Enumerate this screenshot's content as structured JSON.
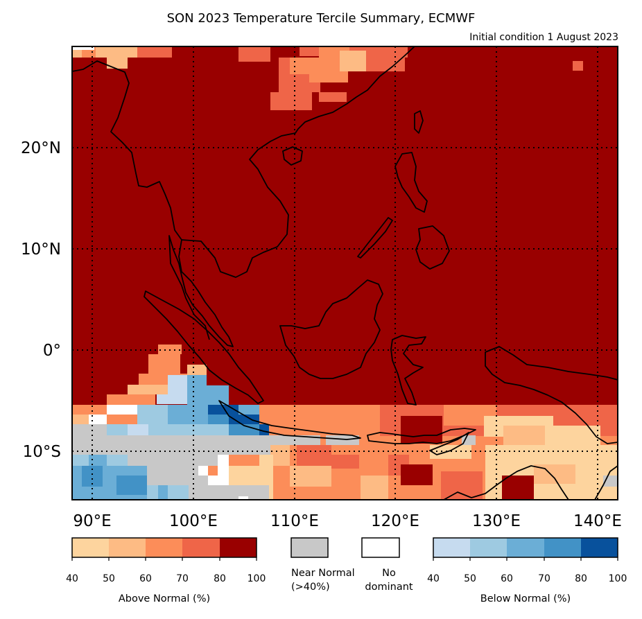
{
  "title": "SON 2023 Temperature Tercile Summary, ECMWF",
  "subtitle": "Initial condition 1 August 2023",
  "map": {
    "lon_range": [
      88,
      142
    ],
    "lat_range": [
      -15,
      30
    ],
    "lon_ticks": [
      {
        "value": 90,
        "label": "90°E"
      },
      {
        "value": 100,
        "label": "100°E"
      },
      {
        "value": 110,
        "label": "110°E"
      },
      {
        "value": 120,
        "label": "120°E"
      },
      {
        "value": 130,
        "label": "130°E"
      },
      {
        "value": 140,
        "label": "140°E"
      }
    ],
    "lat_ticks": [
      {
        "value": 20,
        "label": "20°N"
      },
      {
        "value": 10,
        "label": "10°N"
      },
      {
        "value": 0,
        "label": "0°"
      },
      {
        "value": -10,
        "label": "10°S"
      }
    ],
    "gridlines": "dotted",
    "colors": {
      "above_normal": [
        "#fdd49e",
        "#fdbb84",
        "#fc8d59",
        "#ef6548",
        "#990000"
      ],
      "near_normal": "#c8c8c8",
      "no_dominant": "#ffffff",
      "below_normal": [
        "#c6dbef",
        "#9ecae1",
        "#6baed6",
        "#4292c6",
        "#08519c"
      ]
    }
  },
  "legend": {
    "above": {
      "ticks": [
        "40",
        "50",
        "60",
        "70",
        "80",
        "100"
      ],
      "label": "Above Normal (%)"
    },
    "near_normal": {
      "label_line1": "Near Normal",
      "label_line2": "(>40%)"
    },
    "no_dominant": {
      "label_line1": "No",
      "label_line2": "dominant"
    },
    "below": {
      "ticks": [
        "40",
        "50",
        "60",
        "70",
        "80",
        "100"
      ],
      "label": "Below Normal (%)"
    }
  }
}
